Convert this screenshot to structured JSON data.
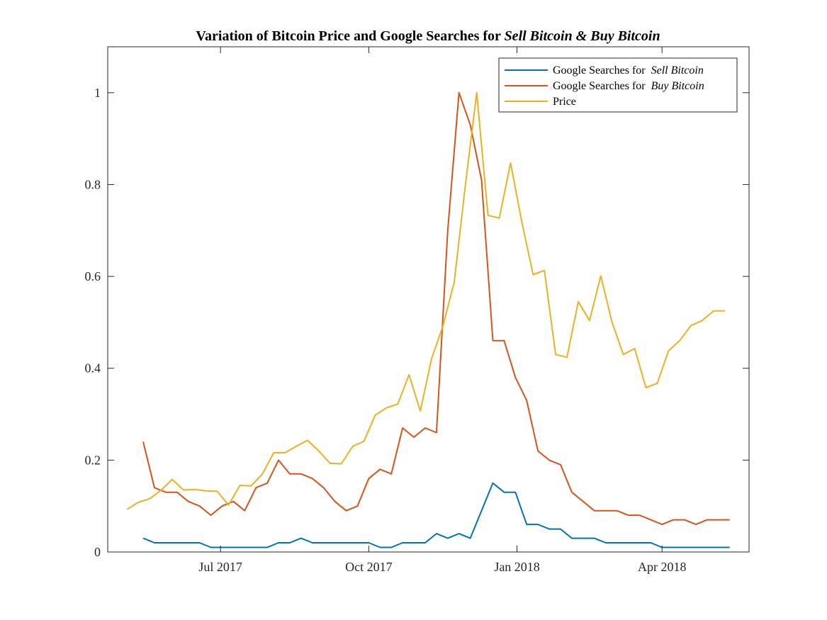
{
  "chart_data": {
    "type": "line",
    "title": {
      "prefix": "Variation of Bitcoin Price and Google Searches for ",
      "highlight": "Sell Bitcoin & Buy Bitcoin"
    },
    "xlabel": "",
    "ylabel": "",
    "xlim": [
      "2017-04-22",
      "2018-05-25"
    ],
    "ylim": [
      0,
      1.1
    ],
    "x_ticks": [
      {
        "date": "2017-07-01",
        "label": "Jul 2017"
      },
      {
        "date": "2017-10-01",
        "label": "Oct 2017"
      },
      {
        "date": "2018-01-01",
        "label": "Jan 2018"
      },
      {
        "date": "2018-04-01",
        "label": "Apr 2018"
      }
    ],
    "y_ticks": [
      0,
      0.2,
      0.4,
      0.6,
      0.8,
      1
    ],
    "grid": false,
    "legend_position": "top-right",
    "series": [
      {
        "name": "Google Searches for Sell Bitcoin",
        "name_prefix": "Google Searches for ",
        "name_highlight": "Sell Bitcoin",
        "color": "#0072BD",
        "x": [
          "2017-05-14",
          "2017-05-21",
          "2017-05-28",
          "2017-06-04",
          "2017-06-11",
          "2017-06-18",
          "2017-06-25",
          "2017-07-02",
          "2017-07-09",
          "2017-07-16",
          "2017-07-23",
          "2017-07-30",
          "2017-08-06",
          "2017-08-13",
          "2017-08-20",
          "2017-08-27",
          "2017-09-03",
          "2017-09-10",
          "2017-09-17",
          "2017-09-24",
          "2017-10-01",
          "2017-10-08",
          "2017-10-15",
          "2017-10-22",
          "2017-10-29",
          "2017-11-05",
          "2017-11-12",
          "2017-11-19",
          "2017-11-26",
          "2017-12-03",
          "2017-12-10",
          "2017-12-17",
          "2017-12-24",
          "2017-12-31",
          "2018-01-07",
          "2018-01-14",
          "2018-01-21",
          "2018-01-28",
          "2018-02-04",
          "2018-02-11",
          "2018-02-18",
          "2018-02-25",
          "2018-03-04",
          "2018-03-11",
          "2018-03-18",
          "2018-03-25",
          "2018-04-01",
          "2018-04-08",
          "2018-04-15",
          "2018-04-22",
          "2018-04-29",
          "2018-05-06",
          "2018-05-13"
        ],
        "values": [
          0.03,
          0.02,
          0.02,
          0.02,
          0.02,
          0.02,
          0.01,
          0.01,
          0.01,
          0.01,
          0.01,
          0.01,
          0.02,
          0.02,
          0.03,
          0.02,
          0.02,
          0.02,
          0.02,
          0.02,
          0.02,
          0.01,
          0.01,
          0.02,
          0.02,
          0.02,
          0.04,
          0.03,
          0.04,
          0.03,
          0.09,
          0.15,
          0.13,
          0.13,
          0.06,
          0.06,
          0.05,
          0.05,
          0.03,
          0.03,
          0.03,
          0.02,
          0.02,
          0.02,
          0.02,
          0.02,
          0.01,
          0.01,
          0.01,
          0.01,
          0.01,
          0.01,
          0.01
        ]
      },
      {
        "name": "Google Searches for Buy Bitcoin",
        "name_prefix": "Google Searches for ",
        "name_highlight": "Buy Bitcoin",
        "color": "#D95319",
        "x": [
          "2017-05-14",
          "2017-05-21",
          "2017-05-28",
          "2017-06-04",
          "2017-06-11",
          "2017-06-18",
          "2017-06-25",
          "2017-07-02",
          "2017-07-09",
          "2017-07-16",
          "2017-07-23",
          "2017-07-30",
          "2017-08-06",
          "2017-08-13",
          "2017-08-20",
          "2017-08-27",
          "2017-09-03",
          "2017-09-10",
          "2017-09-17",
          "2017-09-24",
          "2017-10-01",
          "2017-10-08",
          "2017-10-15",
          "2017-10-22",
          "2017-10-29",
          "2017-11-05",
          "2017-11-12",
          "2017-11-19",
          "2017-11-26",
          "2017-12-03",
          "2017-12-10",
          "2017-12-17",
          "2017-12-24",
          "2017-12-31",
          "2018-01-07",
          "2018-01-14",
          "2018-01-21",
          "2018-01-28",
          "2018-02-04",
          "2018-02-11",
          "2018-02-18",
          "2018-02-25",
          "2018-03-04",
          "2018-03-11",
          "2018-03-18",
          "2018-03-25",
          "2018-04-01",
          "2018-04-08",
          "2018-04-15",
          "2018-04-22",
          "2018-04-29",
          "2018-05-06",
          "2018-05-13"
        ],
        "values": [
          0.24,
          0.14,
          0.13,
          0.13,
          0.11,
          0.1,
          0.08,
          0.1,
          0.11,
          0.09,
          0.14,
          0.15,
          0.2,
          0.17,
          0.17,
          0.16,
          0.14,
          0.11,
          0.09,
          0.1,
          0.16,
          0.18,
          0.17,
          0.27,
          0.25,
          0.27,
          0.26,
          0.7,
          1.0,
          0.93,
          0.81,
          0.46,
          0.46,
          0.38,
          0.33,
          0.22,
          0.2,
          0.19,
          0.13,
          0.11,
          0.09,
          0.09,
          0.09,
          0.08,
          0.08,
          0.07,
          0.06,
          0.07,
          0.07,
          0.06,
          0.07,
          0.07,
          0.07
        ]
      },
      {
        "name": "Price",
        "name_prefix": "Price",
        "name_highlight": "",
        "color": "#EDB120",
        "x": [
          "2017-05-04",
          "2017-05-11",
          "2017-05-18",
          "2017-05-25",
          "2017-06-01",
          "2017-06-08",
          "2017-06-15",
          "2017-06-22",
          "2017-06-29",
          "2017-07-06",
          "2017-07-13",
          "2017-07-20",
          "2017-07-27",
          "2017-08-03",
          "2017-08-10",
          "2017-08-17",
          "2017-08-24",
          "2017-08-31",
          "2017-09-07",
          "2017-09-14",
          "2017-09-21",
          "2017-09-28",
          "2017-10-05",
          "2017-10-12",
          "2017-10-19",
          "2017-10-26",
          "2017-11-02",
          "2017-11-09",
          "2017-11-16",
          "2017-11-23",
          "2017-11-30",
          "2017-12-07",
          "2017-12-14",
          "2017-12-21",
          "2017-12-28",
          "2018-01-04",
          "2018-01-11",
          "2018-01-18",
          "2018-01-25",
          "2018-02-01",
          "2018-02-08",
          "2018-02-15",
          "2018-02-22",
          "2018-03-01",
          "2018-03-08",
          "2018-03-15",
          "2018-03-22",
          "2018-03-29",
          "2018-04-05",
          "2018-04-12",
          "2018-04-19",
          "2018-04-26",
          "2018-05-03",
          "2018-05-10"
        ],
        "values": [
          0.093,
          0.108,
          0.116,
          0.134,
          0.158,
          0.135,
          0.136,
          0.133,
          0.132,
          0.102,
          0.145,
          0.144,
          0.17,
          0.216,
          0.216,
          0.23,
          0.243,
          0.22,
          0.193,
          0.192,
          0.23,
          0.241,
          0.298,
          0.314,
          0.322,
          0.386,
          0.307,
          0.421,
          0.492,
          0.587,
          0.8,
          1.0,
          0.733,
          0.727,
          0.847,
          0.718,
          0.604,
          0.613,
          0.43,
          0.424,
          0.545,
          0.504,
          0.601,
          0.5,
          0.43,
          0.443,
          0.358,
          0.367,
          0.438,
          0.46,
          0.493,
          0.504,
          0.525,
          0.525
        ]
      }
    ]
  }
}
